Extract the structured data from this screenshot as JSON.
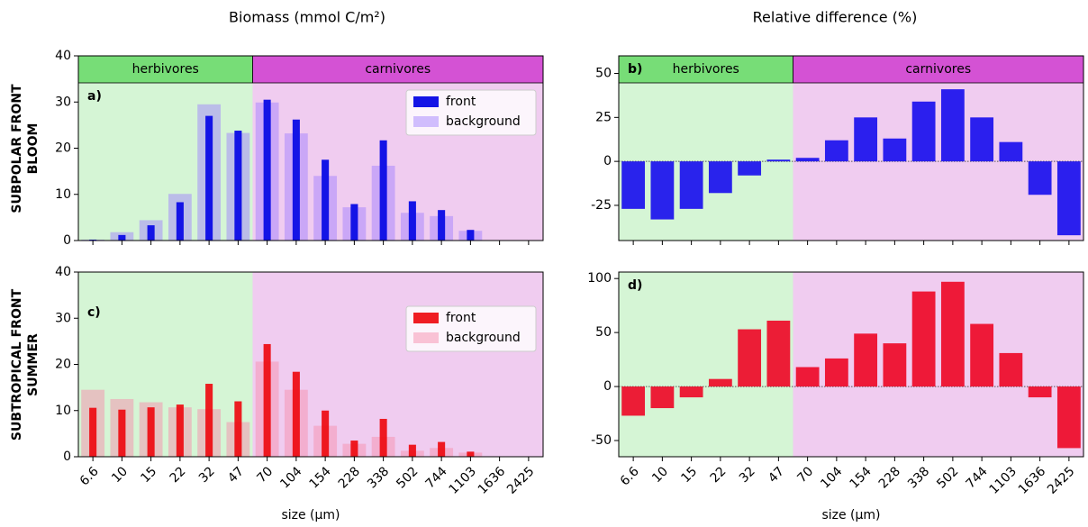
{
  "figure": {
    "column_titles": [
      "Biomass  (mmol C/m²)",
      "Relative difference (%)"
    ],
    "row_labels": [
      [
        "SUBPOLAR FRONT",
        "BLOOM"
      ],
      [
        "SUBTROPICAL FRONT",
        "SUMMER"
      ]
    ]
  },
  "chart_data": [
    {
      "type": "bar",
      "label": "a)",
      "ylim": [
        0,
        40
      ],
      "yticks": [
        0,
        10,
        20,
        30,
        40
      ],
      "legend": "upper right",
      "groups": [
        {
          "name": "herbivores",
          "n": 6,
          "color": "#77dd77",
          "shade": "#d5f5d5"
        },
        {
          "name": "carnivores",
          "n": 10,
          "color": "#d452d4",
          "shade": "#f0ccf0"
        }
      ],
      "series": [
        {
          "name": "front",
          "color": "#1414e6",
          "alpha": 1,
          "values": [
            0.2,
            1.2,
            3.3,
            8.3,
            27,
            23.8,
            30.5,
            26.2,
            17.5,
            7.9,
            21.7,
            8.5,
            6.6,
            2.3,
            0,
            0
          ]
        },
        {
          "name": "background",
          "color": "#9b7bff",
          "alpha": 0.45,
          "values": [
            0.2,
            1.8,
            4.4,
            10.1,
            29.5,
            23.3,
            29.9,
            23.2,
            14,
            7.2,
            16.2,
            6,
            5.3,
            2.1,
            0,
            0
          ]
        }
      ]
    },
    {
      "type": "bar",
      "label": "b)",
      "ylim": [
        -45,
        60
      ],
      "yticks": [
        -25,
        0,
        25,
        50
      ],
      "zero_line": true,
      "groups": [
        {
          "name": "herbivores",
          "n": 6,
          "color": "#77dd77",
          "shade": "#d5f5d5"
        },
        {
          "name": "carnivores",
          "n": 10,
          "color": "#d452d4",
          "shade": "#f0ccf0"
        }
      ],
      "series": [
        {
          "color": "#1a10ee",
          "alpha": 0.92,
          "values": [
            -27,
            -33,
            -27,
            -18,
            -8,
            1,
            2,
            12,
            25,
            13,
            34,
            41,
            25,
            11,
            -19,
            -42
          ]
        }
      ]
    },
    {
      "type": "bar",
      "label": "c)",
      "ylim": [
        0,
        40
      ],
      "yticks": [
        0,
        10,
        20,
        30,
        40
      ],
      "legend": "upper right",
      "xlabel": "size (µm)",
      "categories": [
        "6.6",
        "10",
        "15",
        "22",
        "32",
        "47",
        "70",
        "104",
        "154",
        "228",
        "338",
        "502",
        "744",
        "1103",
        "1636",
        "2425"
      ],
      "groups": [
        {
          "n": 6,
          "shade": "#d5f5d5"
        },
        {
          "n": 10,
          "shade": "#f0ccf0"
        }
      ],
      "series": [
        {
          "name": "front",
          "color": "#ee0a10",
          "alpha": 0.92,
          "values": [
            10.6,
            10.2,
            10.7,
            11.3,
            15.8,
            12,
            24.4,
            18.4,
            10,
            3.5,
            8.2,
            2.6,
            3.2,
            1.1,
            0,
            0
          ]
        },
        {
          "name": "background",
          "color": "#f58fae",
          "alpha": 0.5,
          "values": [
            14.5,
            12.5,
            11.8,
            10.7,
            10.3,
            7.5,
            20.6,
            14.5,
            6.7,
            2.8,
            4.3,
            1.3,
            1.9,
            0.9,
            0,
            0
          ]
        }
      ]
    },
    {
      "type": "bar",
      "label": "d)",
      "ylim": [
        -65,
        106
      ],
      "yticks": [
        -50,
        0,
        50,
        100
      ],
      "zero_line": true,
      "xlabel": "size (µm)",
      "categories": [
        "6.6",
        "10",
        "15",
        "22",
        "32",
        "47",
        "70",
        "104",
        "154",
        "228",
        "338",
        "502",
        "744",
        "1103",
        "1636",
        "2425"
      ],
      "groups": [
        {
          "n": 6,
          "shade": "#d5f5d5"
        },
        {
          "n": 10,
          "shade": "#f0ccf0"
        }
      ],
      "series": [
        {
          "color": "#ee0a28",
          "alpha": 0.92,
          "values": [
            -27,
            -20,
            -10,
            7,
            53,
            61,
            18,
            26,
            49,
            40,
            88,
            97,
            58,
            31,
            -10,
            -57
          ]
        }
      ]
    }
  ]
}
